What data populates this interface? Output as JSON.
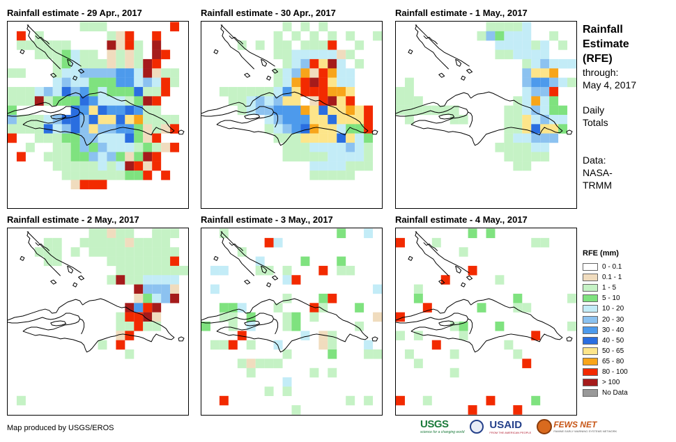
{
  "panels": [
    {
      "title": "Rainfall estimate - 29 Apr., 2017"
    },
    {
      "title": "Rainfall estimate - 30 Apr., 2017"
    },
    {
      "title": "Rainfall estimate - 1 May., 2017"
    },
    {
      "title": "Rainfall estimate - 2 May., 2017"
    },
    {
      "title": "Rainfall estimate - 3 May., 2017"
    },
    {
      "title": "Rainfall estimate - 4 May., 2017"
    }
  ],
  "sidebar": {
    "title_lines": [
      "Rainfall",
      "Estimate",
      "(RFE)"
    ],
    "through_label": "through:",
    "through_date": "May 4, 2017",
    "totals_lines": [
      "Daily",
      "Totals"
    ],
    "data_lines": [
      "Data:",
      "NASA-",
      "TRMM"
    ]
  },
  "legend": {
    "title": "RFE (mm)",
    "items": [
      {
        "label": "0 - 0.1",
        "color": "#ffffff"
      },
      {
        "label": "0.1 - 1",
        "color": "#f0dcbe"
      },
      {
        "label": "1 - 5",
        "color": "#c5f2c5"
      },
      {
        "label": "5 - 10",
        "color": "#7fe27f"
      },
      {
        "label": "10 - 20",
        "color": "#c3ecf7"
      },
      {
        "label": "20 - 30",
        "color": "#8cc2f0"
      },
      {
        "label": "30 - 40",
        "color": "#4d9aec"
      },
      {
        "label": "40 - 50",
        "color": "#2a6ee0"
      },
      {
        "label": "50 - 65",
        "color": "#fde58a"
      },
      {
        "label": "65 - 80",
        "color": "#f8a51a"
      },
      {
        "label": "80 - 100",
        "color": "#f22a00"
      },
      {
        "label": "> 100",
        "color": "#a51b1b"
      },
      {
        "label": "No Data",
        "color": "#999999"
      }
    ]
  },
  "credit": "Map produced by USGS/EROS",
  "logos": {
    "usgs": "USGS",
    "usgs_tagline": "science for a changing world",
    "usaid": "USAID",
    "usaid_tagline": "FROM THE AMERICAN PEOPLE",
    "fews": "FEWS NET",
    "fews_tagline": "FAMINE EARLY WARNING SYSTEMS NETWORK"
  }
}
